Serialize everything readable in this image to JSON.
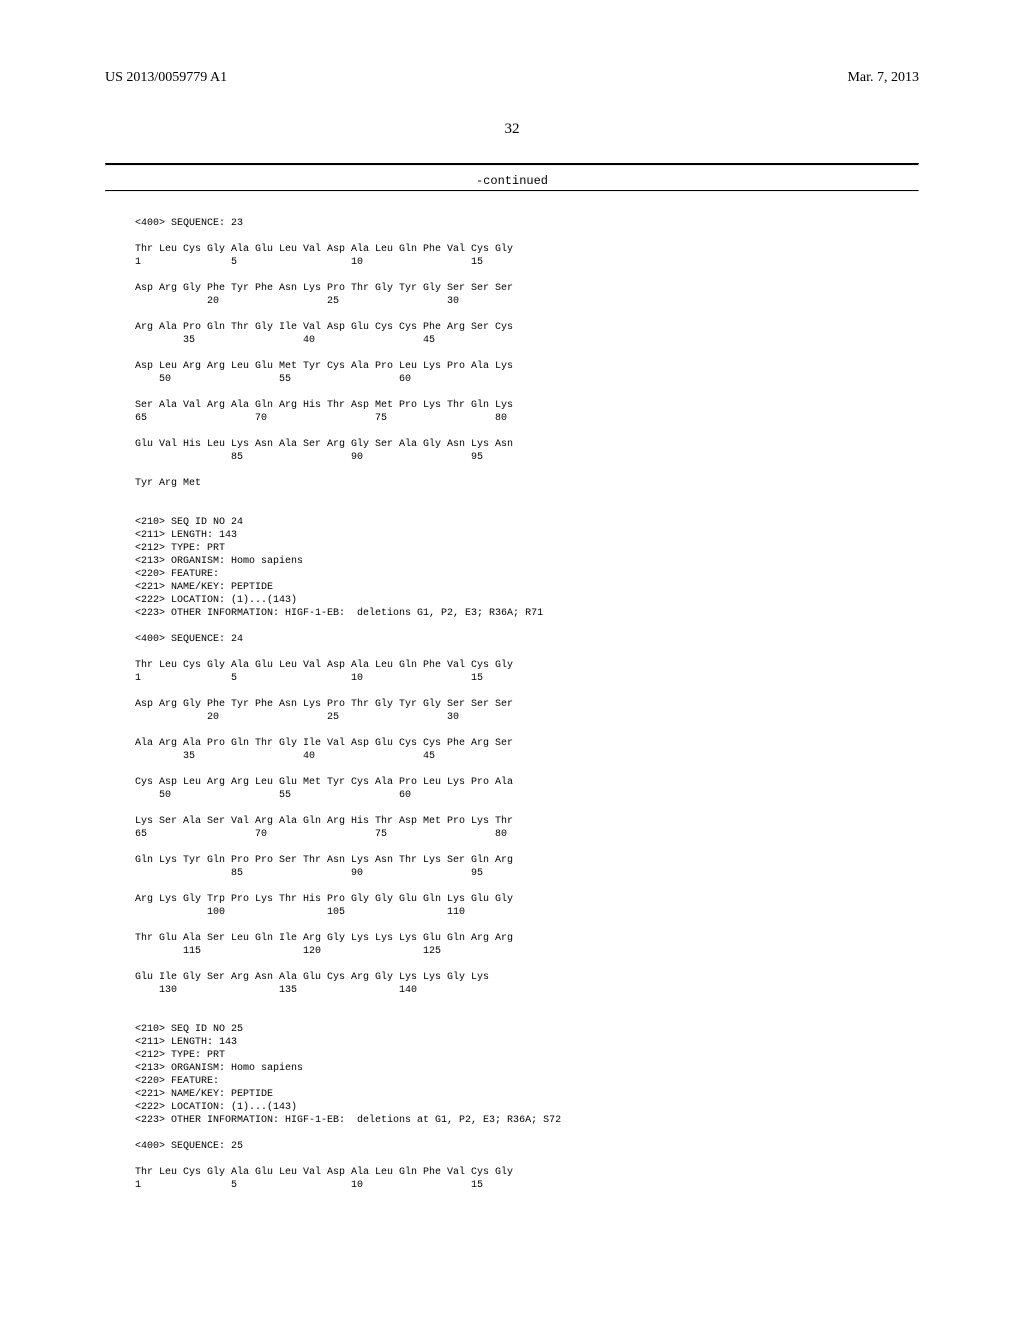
{
  "header": {
    "left": "US 2013/0059779 A1",
    "right": "Mar. 7, 2013"
  },
  "page_number": "32",
  "continued": "-continued",
  "sequences": {
    "seq23": {
      "header": "<400> SEQUENCE: 23",
      "lines": [
        "Thr Leu Cys Gly Ala Glu Leu Val Asp Ala Leu Gln Phe Val Cys Gly",
        "1               5                   10                  15",
        "",
        "Asp Arg Gly Phe Tyr Phe Asn Lys Pro Thr Gly Tyr Gly Ser Ser Ser",
        "            20                  25                  30",
        "",
        "Arg Ala Pro Gln Thr Gly Ile Val Asp Glu Cys Cys Phe Arg Ser Cys",
        "        35                  40                  45",
        "",
        "Asp Leu Arg Arg Leu Glu Met Tyr Cys Ala Pro Leu Lys Pro Ala Lys",
        "    50                  55                  60",
        "",
        "Ser Ala Val Arg Ala Gln Arg His Thr Asp Met Pro Lys Thr Gln Lys",
        "65                  70                  75                  80",
        "",
        "Glu Val His Leu Lys Asn Ala Ser Arg Gly Ser Ala Gly Asn Lys Asn",
        "                85                  90                  95",
        "",
        "Tyr Arg Met"
      ]
    },
    "seq24": {
      "meta": [
        "<210> SEQ ID NO 24",
        "<211> LENGTH: 143",
        "<212> TYPE: PRT",
        "<213> ORGANISM: Homo sapiens",
        "<220> FEATURE:",
        "<221> NAME/KEY: PEPTIDE",
        "<222> LOCATION: (1)...(143)",
        "<223> OTHER INFORMATION: HIGF-1-EB:  deletions G1, P2, E3; R36A; R71"
      ],
      "header": "<400> SEQUENCE: 24",
      "lines": [
        "Thr Leu Cys Gly Ala Glu Leu Val Asp Ala Leu Gln Phe Val Cys Gly",
        "1               5                   10                  15",
        "",
        "Asp Arg Gly Phe Tyr Phe Asn Lys Pro Thr Gly Tyr Gly Ser Ser Ser",
        "            20                  25                  30",
        "",
        "Ala Arg Ala Pro Gln Thr Gly Ile Val Asp Glu Cys Cys Phe Arg Ser",
        "        35                  40                  45",
        "",
        "Cys Asp Leu Arg Arg Leu Glu Met Tyr Cys Ala Pro Leu Lys Pro Ala",
        "    50                  55                  60",
        "",
        "Lys Ser Ala Ser Val Arg Ala Gln Arg His Thr Asp Met Pro Lys Thr",
        "65                  70                  75                  80",
        "",
        "Gln Lys Tyr Gln Pro Pro Ser Thr Asn Lys Asn Thr Lys Ser Gln Arg",
        "                85                  90                  95",
        "",
        "Arg Lys Gly Trp Pro Lys Thr His Pro Gly Gly Glu Gln Lys Glu Gly",
        "            100                 105                 110",
        "",
        "Thr Glu Ala Ser Leu Gln Ile Arg Gly Lys Lys Lys Glu Gln Arg Arg",
        "        115                 120                 125",
        "",
        "Glu Ile Gly Ser Arg Asn Ala Glu Cys Arg Gly Lys Lys Gly Lys",
        "    130                 135                 140"
      ]
    },
    "seq25": {
      "meta": [
        "<210> SEQ ID NO 25",
        "<211> LENGTH: 143",
        "<212> TYPE: PRT",
        "<213> ORGANISM: Homo sapiens",
        "<220> FEATURE:",
        "<221> NAME/KEY: PEPTIDE",
        "<222> LOCATION: (1)...(143)",
        "<223> OTHER INFORMATION: HIGF-1-EB:  deletions at G1, P2, E3; R36A; S72"
      ],
      "header": "<400> SEQUENCE: 25",
      "lines": [
        "Thr Leu Cys Gly Ala Glu Leu Val Asp Ala Leu Gln Phe Val Cys Gly",
        "1               5                   10                  15"
      ]
    }
  }
}
